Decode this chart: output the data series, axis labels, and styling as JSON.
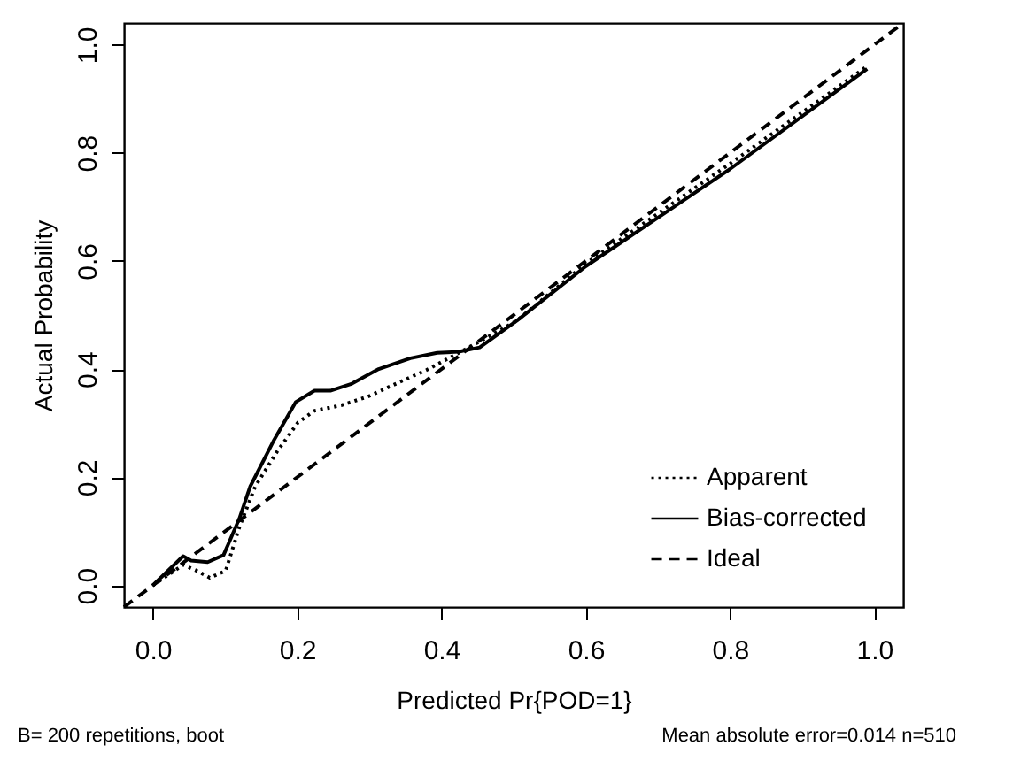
{
  "chart_data": {
    "type": "line",
    "xlabel": "Predicted Pr{POD=1}",
    "ylabel": "Actual Probability",
    "xlim": [
      -0.04,
      1.04
    ],
    "ylim": [
      -0.04,
      1.04
    ],
    "xticks": [
      {
        "value": 0,
        "label": "0.0"
      },
      0.2,
      0.4,
      0.6,
      0.8,
      {
        "value": 1,
        "label": "1.0"
      }
    ],
    "yticks": [
      {
        "value": 0,
        "label": "0.0"
      },
      0.2,
      0.4,
      0.6,
      0.8,
      {
        "value": 1,
        "label": "1.0"
      }
    ],
    "grid": false,
    "legend": "bottom right",
    "marker": "none",
    "annotations": [
      "B= 200 repetitions, boot",
      "Mean absolute error=0.014 n=510"
    ],
    "series": [
      {
        "name": "Apparent",
        "color": "#000000",
        "line_style": "dotted",
        "x": [
          0,
          0.042,
          0.061,
          0.079,
          0.101,
          0.12,
          0.142,
          0.172,
          0.201,
          0.224,
          0.261,
          0.298,
          0.342,
          0.379,
          0.424,
          0.468,
          0.505,
          0.6,
          0.8,
          0.99
        ],
        "values": [
          0,
          0.038,
          0.027,
          0.014,
          0.027,
          0.108,
          0.183,
          0.247,
          0.301,
          0.323,
          0.333,
          0.349,
          0.376,
          0.398,
          0.43,
          0.462,
          0.49,
          0.595,
          0.78,
          0.96
        ]
      },
      {
        "name": "Bias-corrected",
        "color": "#000000",
        "line_style": "solid",
        "x": [
          0,
          0.042,
          0.053,
          0.076,
          0.098,
          0.12,
          0.135,
          0.168,
          0.198,
          0.224,
          0.246,
          0.276,
          0.313,
          0.357,
          0.394,
          0.424,
          0.453,
          0.505,
          0.6,
          0.8,
          0.99
        ],
        "values": [
          0,
          0.054,
          0.046,
          0.043,
          0.056,
          0.124,
          0.183,
          0.269,
          0.339,
          0.36,
          0.36,
          0.373,
          0.4,
          0.42,
          0.43,
          0.432,
          0.44,
          0.49,
          0.59,
          0.77,
          0.955
        ]
      },
      {
        "name": "Ideal",
        "color": "#000000",
        "line_style": "dashed",
        "x": [
          -0.04,
          1.04
        ],
        "values": [
          -0.04,
          1.04
        ]
      }
    ]
  }
}
